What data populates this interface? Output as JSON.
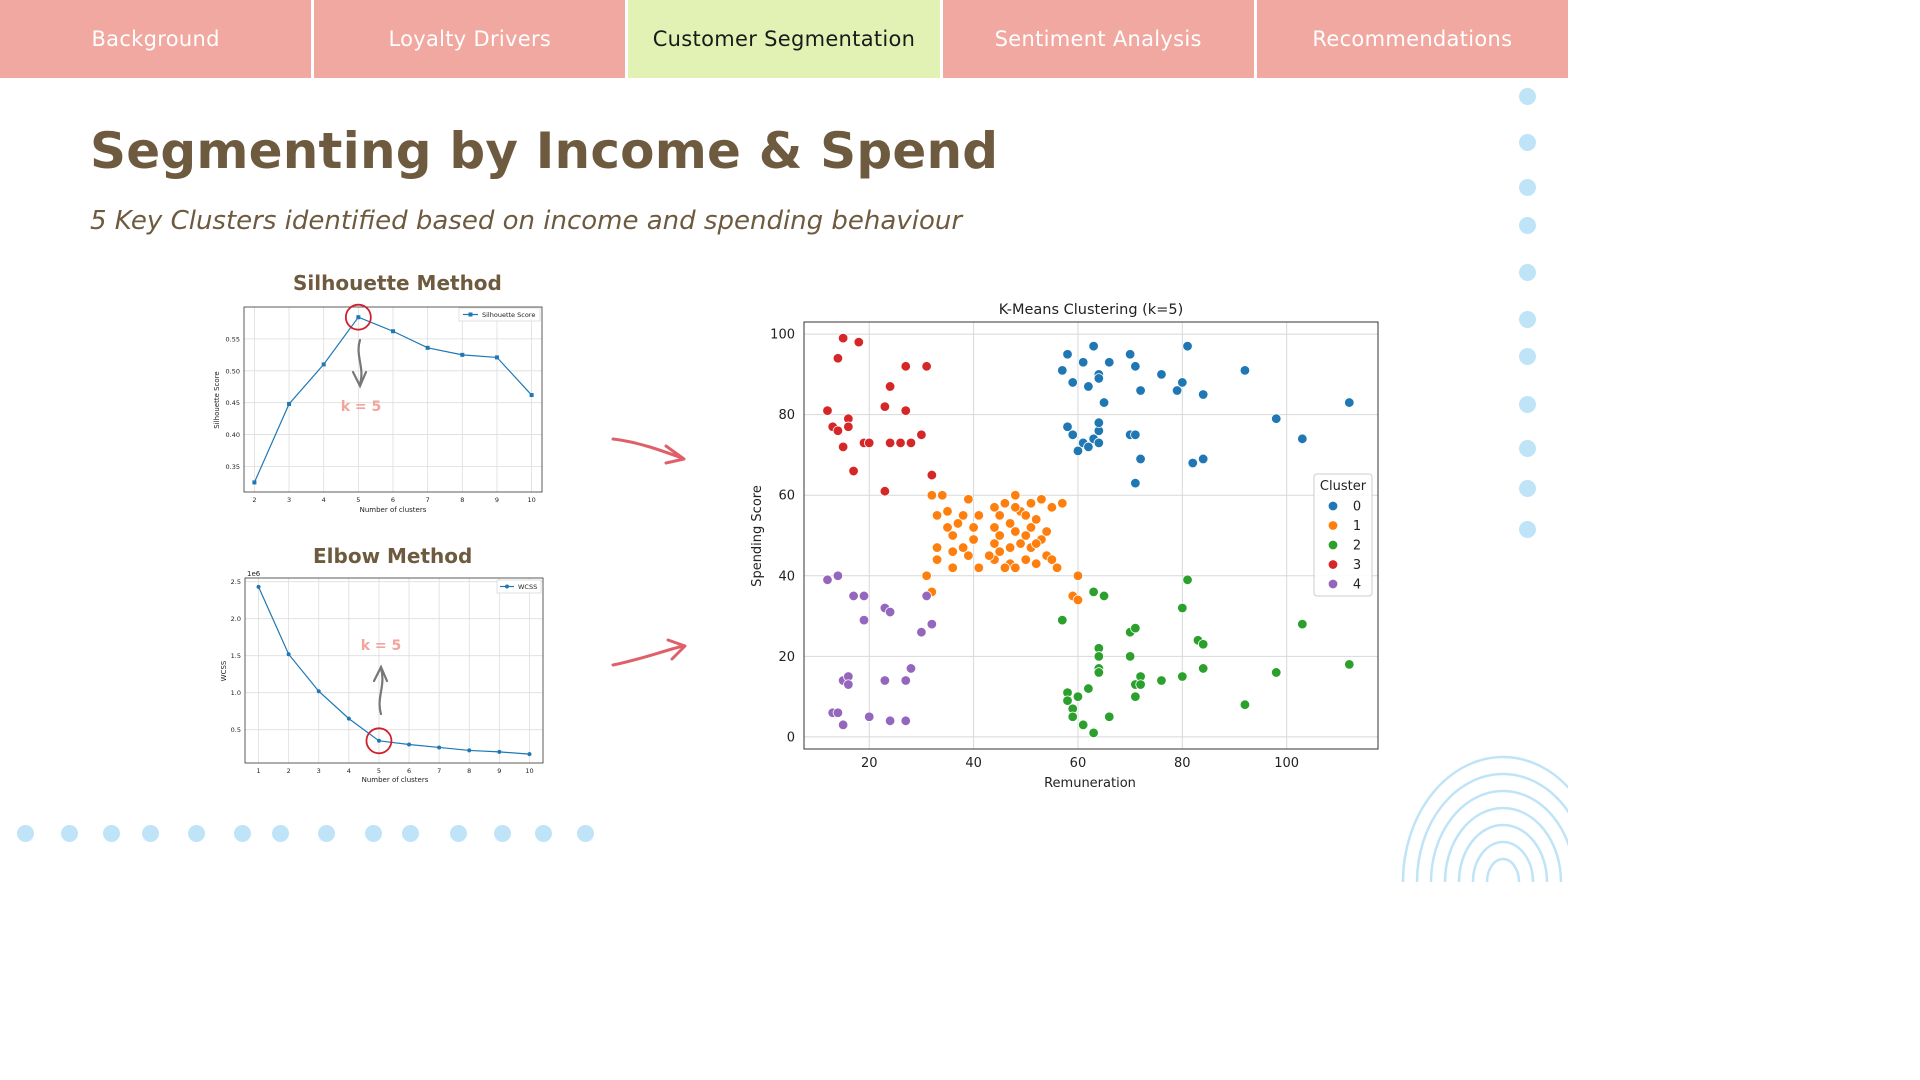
{
  "nav": {
    "tabs": [
      {
        "label": "Background",
        "active": false
      },
      {
        "label": "Loyalty Drivers",
        "active": false
      },
      {
        "label": "Customer Segmentation",
        "active": true
      },
      {
        "label": "Sentiment Analysis",
        "active": false
      },
      {
        "label": "Recommendations",
        "active": false
      }
    ]
  },
  "slide": {
    "title": "Segmenting by Income & Spend",
    "subtitle": "5 Key Clusters identified based on income and spending behaviour",
    "silhouette_heading": "Silhouette Method",
    "elbow_heading": "Elbow Method",
    "annotation": "k = 5"
  },
  "colors": {
    "tab": "#f0a8a0",
    "tab_active": "#e2f2b4",
    "heading": "#6e5a3f",
    "accent_arrow": "#e0606a",
    "decor_dots": "#bfe4f7"
  },
  "chart_data": [
    {
      "type": "line",
      "title": "",
      "xlabel": "Number of clusters",
      "ylabel": "Silhouette Score",
      "x": [
        2,
        3,
        4,
        5,
        6,
        7,
        8,
        9,
        10
      ],
      "series": [
        {
          "name": "Silhouette Score",
          "values": [
            0.325,
            0.448,
            0.51,
            0.584,
            0.562,
            0.536,
            0.525,
            0.521,
            0.462
          ]
        }
      ],
      "xlim": [
        1.7,
        10.3
      ],
      "ylim": [
        0.31,
        0.6
      ],
      "yticks": [
        0.35,
        0.4,
        0.45,
        0.5,
        0.55
      ],
      "ytick_labels": [
        "0.35",
        "0.40",
        "0.45",
        "0.50",
        "0.55"
      ],
      "highlight_x": 5,
      "grid": true,
      "legend": "top-right"
    },
    {
      "type": "line",
      "title": "",
      "xlabel": "Number of clusters",
      "ylabel": "WCSS",
      "y_multiplier": "1e6",
      "x": [
        1,
        2,
        3,
        4,
        5,
        6,
        7,
        8,
        9,
        10
      ],
      "series": [
        {
          "name": "WCSS",
          "values": [
            2.43,
            1.52,
            1.02,
            0.65,
            0.35,
            0.3,
            0.26,
            0.22,
            0.2,
            0.17
          ]
        }
      ],
      "xlim": [
        0.55,
        10.45
      ],
      "ylim": [
        0.05,
        2.55
      ],
      "yticks": [
        0.5,
        1.0,
        1.5,
        2.0,
        2.5
      ],
      "ytick_labels": [
        "0.5",
        "1.0",
        "1.5",
        "2.0",
        "2.5"
      ],
      "highlight_x": 5,
      "grid": true,
      "legend": "top-right"
    },
    {
      "type": "scatter",
      "title": "K-Means Clustering (k=5)",
      "xlabel": "Remuneration",
      "ylabel": "Spending Score",
      "xlim": [
        7.5,
        117.5
      ],
      "ylim": [
        -3,
        103
      ],
      "xticks": [
        20,
        40,
        60,
        80,
        100
      ],
      "yticks": [
        0,
        20,
        40,
        60,
        80,
        100
      ],
      "grid": true,
      "legend": "right",
      "legend_title": "Cluster",
      "series": [
        {
          "name": "0",
          "color": "#1f77b4",
          "points": [
            [
              57,
              91
            ],
            [
              58,
              95
            ],
            [
              59,
              88
            ],
            [
              61,
              93
            ],
            [
              62,
              87
            ],
            [
              63,
              97
            ],
            [
              64,
              90
            ],
            [
              64,
              89
            ],
            [
              65,
              83
            ],
            [
              66,
              93
            ],
            [
              70,
              95
            ],
            [
              71,
              92
            ],
            [
              72,
              86
            ],
            [
              76,
              90
            ],
            [
              79,
              86
            ],
            [
              80,
              88
            ],
            [
              81,
              97
            ],
            [
              84,
              85
            ],
            [
              92,
              91
            ],
            [
              98,
              79
            ],
            [
              103,
              74
            ],
            [
              112,
              83
            ],
            [
              58,
              77
            ],
            [
              59,
              75
            ],
            [
              60,
              71
            ],
            [
              61,
              73
            ],
            [
              62,
              72
            ],
            [
              63,
              74
            ],
            [
              64,
              76
            ],
            [
              64,
              78
            ],
            [
              64,
              73
            ],
            [
              70,
              75
            ],
            [
              71,
              75
            ],
            [
              72,
              69
            ],
            [
              71,
              63
            ],
            [
              82,
              68
            ],
            [
              84,
              69
            ]
          ]
        },
        {
          "name": "1",
          "color": "#ff7f0e",
          "points": [
            [
              32,
              60
            ],
            [
              33,
              55
            ],
            [
              33,
              47
            ],
            [
              34,
              60
            ],
            [
              35,
              52
            ],
            [
              35,
              56
            ],
            [
              36,
              50
            ],
            [
              36,
              46
            ],
            [
              37,
              53
            ],
            [
              38,
              47
            ],
            [
              38,
              55
            ],
            [
              39,
              59
            ],
            [
              39,
              45
            ],
            [
              40,
              52
            ],
            [
              40,
              49
            ],
            [
              41,
              55
            ],
            [
              41,
              42
            ],
            [
              44,
              57
            ],
            [
              44,
              52
            ],
            [
              44,
              48
            ],
            [
              44,
              44
            ],
            [
              45,
              55
            ],
            [
              45,
              50
            ],
            [
              45,
              46
            ],
            [
              46,
              58
            ],
            [
              47,
              53
            ],
            [
              47,
              47
            ],
            [
              47,
              43
            ],
            [
              48,
              60
            ],
            [
              48,
              51
            ],
            [
              48,
              42
            ],
            [
              49,
              56
            ],
            [
              49,
              48
            ],
            [
              50,
              55
            ],
            [
              50,
              50
            ],
            [
              50,
              44
            ],
            [
              51,
              58
            ],
            [
              51,
              52
            ],
            [
              51,
              47
            ],
            [
              52,
              43
            ],
            [
              52,
              54
            ],
            [
              53,
              49
            ],
            [
              53,
              59
            ],
            [
              54,
              45
            ],
            [
              54,
              51
            ],
            [
              55,
              57
            ],
            [
              56,
              42
            ],
            [
              57,
              58
            ],
            [
              60,
              40
            ],
            [
              59,
              35
            ],
            [
              60,
              34
            ],
            [
              32,
              36
            ],
            [
              33,
              44
            ],
            [
              31,
              40
            ],
            [
              36,
              42
            ],
            [
              43,
              45
            ],
            [
              46,
              42
            ],
            [
              48,
              57
            ],
            [
              52,
              48
            ],
            [
              55,
              44
            ]
          ]
        },
        {
          "name": "2",
          "color": "#2ca02c",
          "points": [
            [
              57,
              29
            ],
            [
              58,
              11
            ],
            [
              58,
              9
            ],
            [
              59,
              7
            ],
            [
              59,
              5
            ],
            [
              60,
              10
            ],
            [
              61,
              3
            ],
            [
              62,
              12
            ],
            [
              63,
              36
            ],
            [
              63,
              1
            ],
            [
              64,
              22
            ],
            [
              64,
              20
            ],
            [
              64,
              17
            ],
            [
              64,
              16
            ],
            [
              65,
              35
            ],
            [
              66,
              5
            ],
            [
              70,
              26
            ],
            [
              70,
              20
            ],
            [
              71,
              27
            ],
            [
              71,
              13
            ],
            [
              71,
              10
            ],
            [
              72,
              15
            ],
            [
              72,
              13
            ],
            [
              76,
              14
            ],
            [
              80,
              32
            ],
            [
              80,
              15
            ],
            [
              81,
              39
            ],
            [
              83,
              24
            ],
            [
              84,
              23
            ],
            [
              84,
              17
            ],
            [
              92,
              8
            ],
            [
              98,
              16
            ],
            [
              103,
              28
            ],
            [
              112,
              18
            ]
          ]
        },
        {
          "name": "3",
          "color": "#d62728",
          "points": [
            [
              12,
              81
            ],
            [
              13,
              77
            ],
            [
              14,
              76
            ],
            [
              14,
              94
            ],
            [
              15,
              99
            ],
            [
              15,
              72
            ],
            [
              16,
              79
            ],
            [
              16,
              77
            ],
            [
              17,
              66
            ],
            [
              18,
              98
            ],
            [
              19,
              73
            ],
            [
              20,
              73
            ],
            [
              23,
              61
            ],
            [
              23,
              82
            ],
            [
              24,
              87
            ],
            [
              24,
              73
            ],
            [
              26,
              73
            ],
            [
              27,
              92
            ],
            [
              27,
              81
            ],
            [
              28,
              73
            ],
            [
              30,
              75
            ],
            [
              31,
              92
            ],
            [
              32,
              65
            ]
          ]
        },
        {
          "name": "4",
          "color": "#9467bd",
          "points": [
            [
              12,
              39
            ],
            [
              14,
              40
            ],
            [
              13,
              6
            ],
            [
              14,
              6
            ],
            [
              15,
              14
            ],
            [
              15,
              3
            ],
            [
              16,
              15
            ],
            [
              16,
              13
            ],
            [
              17,
              35
            ],
            [
              19,
              29
            ],
            [
              19,
              35
            ],
            [
              20,
              5
            ],
            [
              23,
              32
            ],
            [
              24,
              31
            ],
            [
              23,
              14
            ],
            [
              24,
              4
            ],
            [
              27,
              4
            ],
            [
              27,
              14
            ],
            [
              28,
              17
            ],
            [
              30,
              26
            ],
            [
              31,
              35
            ],
            [
              32,
              28
            ]
          ]
        }
      ]
    }
  ]
}
